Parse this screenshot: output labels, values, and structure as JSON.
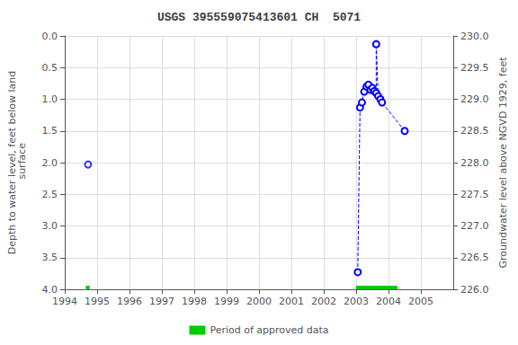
{
  "chart_data": {
    "type": "line",
    "title": "USGS 395559075413601 CH  5071",
    "y_label": "Depth to water level, feet below land\n surface",
    "y2_label": "Groundwater level above NGVD 1929, feet",
    "xlim": [
      1994,
      2006
    ],
    "xticks": [
      1994,
      1995,
      1996,
      1997,
      1998,
      1999,
      2000,
      2001,
      2002,
      2003,
      2004,
      2005
    ],
    "ylim": [
      4.0,
      0.0
    ],
    "yticks": [
      {
        "value": 0.0,
        "label": "0.0"
      },
      0.5,
      {
        "value": 1.0,
        "label": "1.0"
      },
      1.5,
      {
        "value": 2.0,
        "label": "2.0"
      },
      2.5,
      {
        "value": 3.0,
        "label": "3.0"
      },
      3.5,
      {
        "value": 4.0,
        "label": "4.0"
      }
    ],
    "y2lim": [
      226.0,
      230.0
    ],
    "y2ticks": [
      {
        "value": 226.0,
        "label": "226.0"
      },
      226.5,
      {
        "value": 227.0,
        "label": "227.0"
      },
      227.5,
      {
        "value": 228.0,
        "label": "228.0"
      },
      228.5,
      {
        "value": 229.0,
        "label": "229.0"
      },
      229.5,
      {
        "value": 230.0,
        "label": "230.0"
      }
    ],
    "grid": true,
    "legend": "bottom",
    "series": [
      {
        "color": "blue",
        "marker": "circle",
        "line_style": "dashed",
        "x": [
          2003.05,
          2003.12,
          2003.18,
          2003.25,
          2003.32,
          2003.38,
          2003.44,
          2003.5,
          2003.56,
          2003.62,
          2003.62,
          2003.68,
          2003.75,
          2003.8,
          2004.5
        ],
        "values": [
          3.73,
          1.13,
          1.05,
          0.88,
          0.8,
          0.77,
          0.85,
          0.82,
          0.87,
          0.9,
          0.13,
          0.95,
          1.0,
          1.05,
          1.5
        ]
      },
      {
        "color": "blue",
        "marker": "circle",
        "line_style": "none",
        "x": [
          1994.72
        ],
        "values": [
          2.03
        ]
      }
    ],
    "approved_periods": {
      "name": "Period of approved data",
      "color": "#00cc00",
      "y": 4.0,
      "ranges": [
        [
          1994.65,
          1994.77
        ],
        [
          2003.0,
          2004.27
        ]
      ]
    }
  }
}
